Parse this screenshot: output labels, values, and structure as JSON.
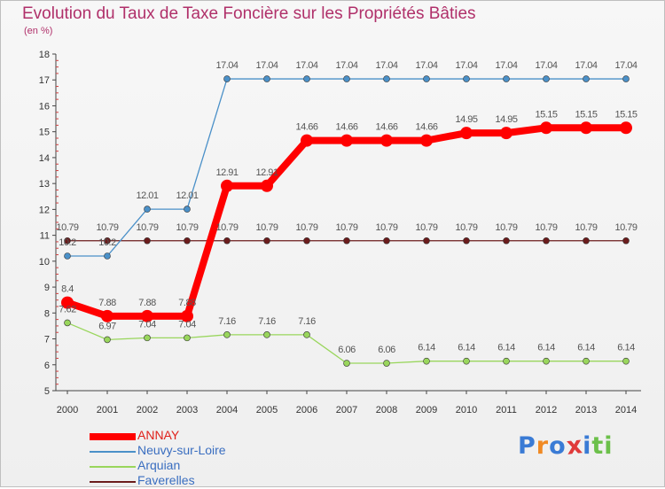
{
  "title": "Evolution du Taux de Taxe Foncière sur les Propriétés Bâties",
  "subtitle": "(en %)",
  "logo": "Proxiti",
  "chart_data": {
    "type": "line",
    "title": "Evolution du Taux de Taxe Foncière sur les Propriétés Bâties",
    "ylabel": "(en %)",
    "xlabel": "",
    "ylim": [
      5,
      18
    ],
    "yticks": [
      "5",
      "6",
      "7",
      "8",
      "9",
      "10",
      "11",
      "12",
      "13",
      "14",
      "15",
      "16",
      "17",
      "18"
    ],
    "categories": [
      "2000",
      "2001",
      "2002",
      "2003",
      "2004",
      "2005",
      "2006",
      "2007",
      "2008",
      "2009",
      "2010",
      "2011",
      "2012",
      "2013",
      "2014"
    ],
    "grid": false,
    "legend_position": "bottom-left",
    "series": [
      {
        "name": "Arquian",
        "color": "#99d65c",
        "values": [
          7.62,
          6.97,
          7.04,
          7.04,
          7.16,
          7.16,
          7.16,
          6.06,
          6.06,
          6.14,
          6.14,
          6.14,
          6.14,
          6.14,
          6.14
        ],
        "labels": [
          "7.62",
          "6.97",
          "7.04",
          "7.04",
          "7.16",
          "7.16",
          "7.16",
          "6.06",
          "6.06",
          "6.14",
          "6.14",
          "6.14",
          "6.14",
          "6.14",
          "6.14"
        ]
      },
      {
        "name": "Faverelles",
        "color": "#6b1c1c",
        "values": [
          10.79,
          10.79,
          10.79,
          10.79,
          10.79,
          10.79,
          10.79,
          10.79,
          10.79,
          10.79,
          10.79,
          10.79,
          10.79,
          10.79,
          10.79
        ],
        "labels": [
          "10.79",
          "10.79",
          "10.79",
          "10.79",
          "10.79",
          "10.79",
          "10.79",
          "10.79",
          "10.79",
          "10.79",
          "10.79",
          "10.79",
          "10.79",
          "10.79",
          "10.79"
        ]
      },
      {
        "name": "Neuvy-sur-Loire",
        "color": "#4a90c8",
        "values": [
          10.2,
          10.2,
          12.01,
          12.01,
          17.04,
          17.04,
          17.04,
          17.04,
          17.04,
          17.04,
          17.04,
          17.04,
          17.04,
          17.04,
          17.04
        ],
        "labels": [
          "10.2",
          "10.2",
          "12.01",
          "12.01",
          "17.04",
          "17.04",
          "17.04",
          "17.04",
          "17.04",
          "17.04",
          "17.04",
          "17.04",
          "17.04",
          "17.04",
          "17.04"
        ]
      },
      {
        "name": "ANNAY",
        "color": "#ff0000",
        "values": [
          8.4,
          7.88,
          7.88,
          7.88,
          12.91,
          12.91,
          14.66,
          14.66,
          14.66,
          14.66,
          14.95,
          14.95,
          15.15,
          15.15,
          15.15
        ],
        "labels": [
          "8.4",
          "7.88",
          "7.88",
          "7.88",
          "12.91",
          "12.91",
          "14.66",
          "14.66",
          "14.66",
          "14.66",
          "14.95",
          "14.95",
          "15.15",
          "15.15",
          "15.15"
        ]
      }
    ],
    "legend": [
      {
        "name": "ANNAY",
        "color": "#ff0000",
        "text_color": "#e0201a"
      },
      {
        "name": "Neuvy-sur-Loire",
        "color": "#4a90c8",
        "text_color": "#3a6ec0"
      },
      {
        "name": "Arquian",
        "color": "#99d65c",
        "text_color": "#3a6ec0"
      },
      {
        "name": "Faverelles",
        "color": "#6b1c1c",
        "text_color": "#3a6ec0"
      }
    ]
  }
}
